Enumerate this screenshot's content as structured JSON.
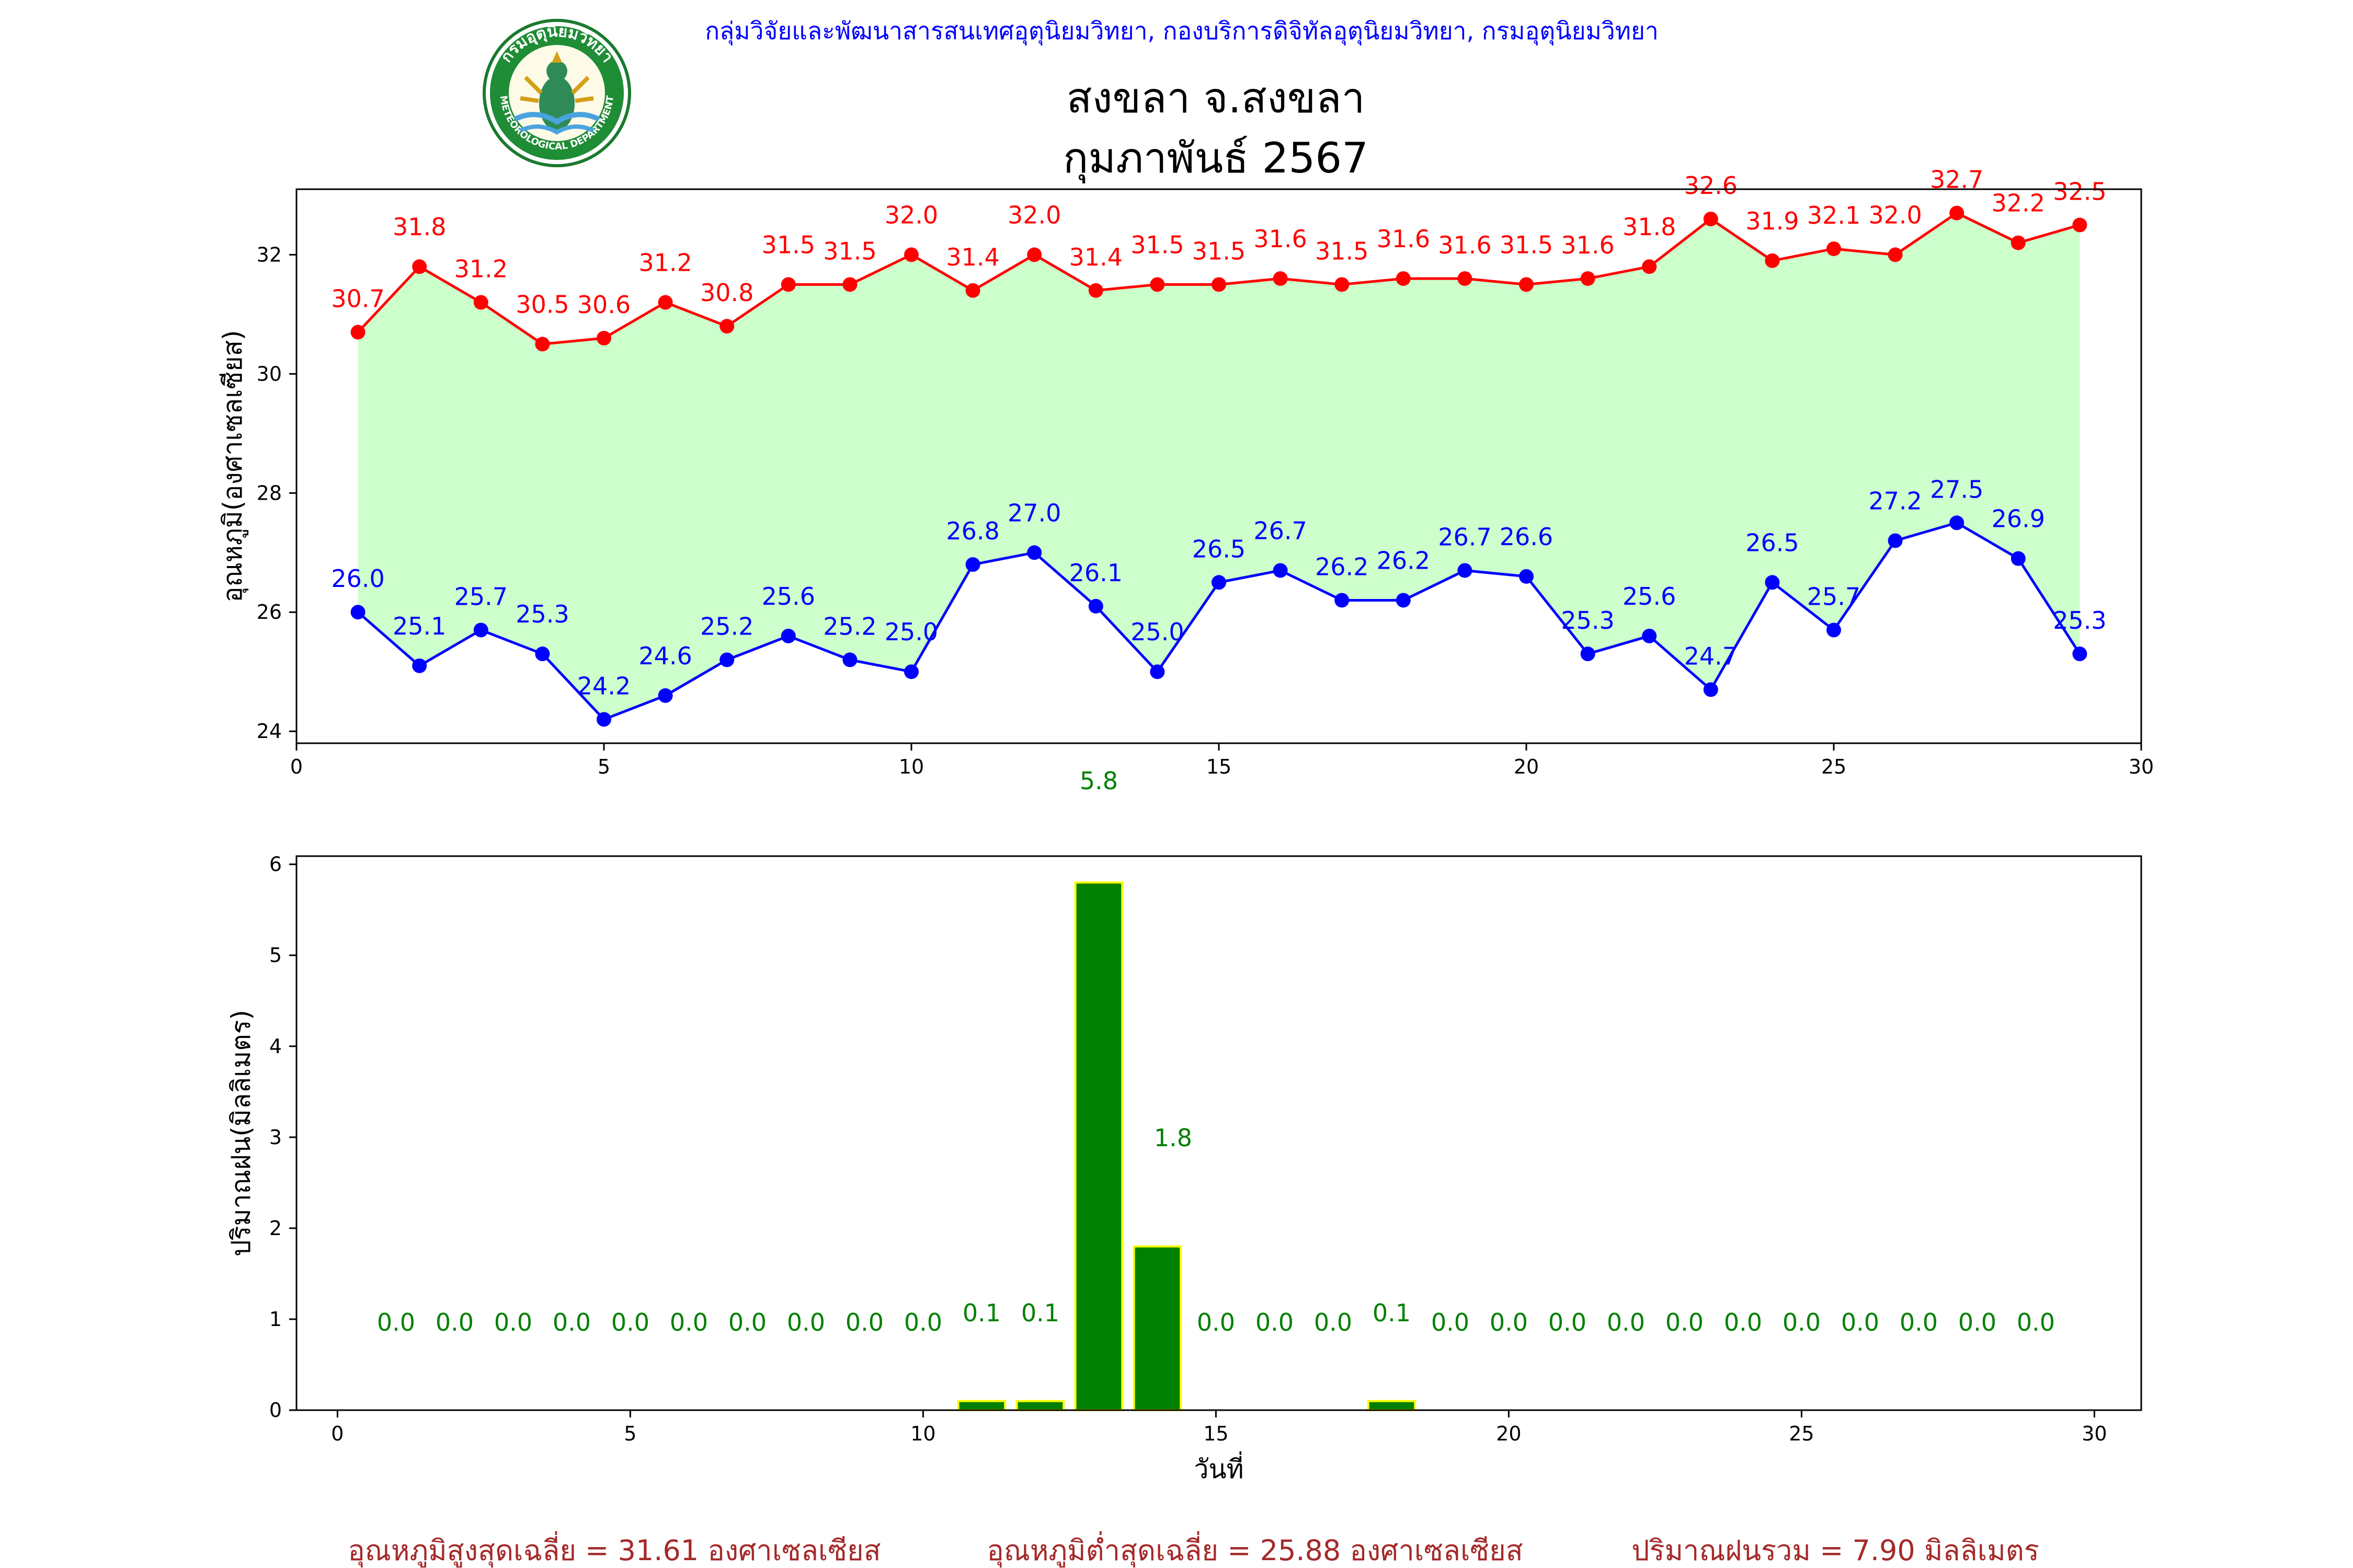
{
  "header": {
    "agency_line": "กลุ่มวิจัยและพัฒนาสารสนเทศอุตุนิยมวิทยา, กองบริการดิจิทัลอุตุนิยมวิทยา, กรมอุตุนิยมวิทยา",
    "station": "สงขลา จ.สงขลา",
    "period": "กุมภาพันธ์ 2567",
    "logo": {
      "icon": "meteorological-department-seal-icon",
      "ring_text": "กรมอุตุนิยมวิทยา",
      "ring_text_en": "METEOROLOGICAL DEPARTMENT"
    }
  },
  "colors": {
    "max_line": "#ff0000",
    "min_line": "#0000ff",
    "band_fill": "#ccffcc",
    "rain_bar": "#008000",
    "rain_edge": "#ffff00",
    "rain_label": "#008000",
    "footer_text": "#a52a2a",
    "header_text": "#0000ff"
  },
  "chart_data": [
    {
      "type": "line",
      "ylabel": "อุณหภูมิ(องศาเซลเซียส)",
      "xlim": [
        0,
        30
      ],
      "ylim": [
        23.8,
        33.1
      ],
      "xticks": [
        0,
        5,
        10,
        15,
        20,
        25,
        30
      ],
      "yticks": [
        24,
        26,
        28,
        30,
        32
      ],
      "x": [
        1,
        2,
        3,
        4,
        5,
        6,
        7,
        8,
        9,
        10,
        11,
        12,
        13,
        14,
        15,
        16,
        17,
        18,
        19,
        20,
        21,
        22,
        23,
        24,
        25,
        26,
        27,
        28,
        29
      ],
      "series": [
        {
          "values": [
            30.7,
            31.8,
            31.2,
            30.5,
            30.6,
            31.2,
            30.8,
            31.5,
            31.5,
            32.0,
            31.4,
            32.0,
            31.4,
            31.5,
            31.5,
            31.6,
            31.5,
            31.6,
            31.6,
            31.5,
            31.6,
            31.8,
            32.6,
            31.9,
            32.1,
            32.0,
            32.7,
            32.2,
            32.5
          ]
        },
        {
          "values": [
            26.0,
            25.1,
            25.7,
            25.3,
            24.2,
            24.6,
            25.2,
            25.6,
            25.2,
            25.0,
            26.8,
            27.0,
            26.1,
            25.0,
            26.5,
            26.7,
            26.2,
            26.2,
            26.7,
            26.6,
            25.3,
            25.6,
            24.7,
            26.5,
            25.7,
            27.2,
            27.5,
            26.9,
            25.3
          ]
        }
      ]
    },
    {
      "type": "bar",
      "ylabel": "ปริมาณฝน(มิลลิเมตร)",
      "xlabel": "วันที่",
      "xlim": [
        -0.7,
        30.8
      ],
      "ylim": [
        0,
        6.09
      ],
      "xticks": [
        0,
        5,
        10,
        15,
        20,
        25,
        30
      ],
      "yticks": [
        0,
        1,
        2,
        3,
        4,
        5,
        6
      ],
      "categories": [
        1,
        2,
        3,
        4,
        5,
        6,
        7,
        8,
        9,
        10,
        11,
        12,
        13,
        14,
        15,
        16,
        17,
        18,
        19,
        20,
        21,
        22,
        23,
        24,
        25,
        26,
        27,
        28,
        29
      ],
      "values": [
        0.0,
        0.0,
        0.0,
        0.0,
        0.0,
        0.0,
        0.0,
        0.0,
        0.0,
        0.0,
        0.1,
        0.1,
        5.8,
        1.8,
        0.0,
        0.0,
        0.0,
        0.1,
        0.0,
        0.0,
        0.0,
        0.0,
        0.0,
        0.0,
        0.0,
        0.0,
        0.0,
        0.0,
        0.0
      ]
    }
  ],
  "footer": {
    "avg_max": "อุณหภูมิสูงสุดเฉลี่ย = 31.61 องศาเซลเซียส",
    "avg_min": "อุณหภูมิต่ำสุดเฉลี่ย = 25.88 องศาเซลเซียส",
    "total_rain": "ปริมาณฝนรวม = 7.90 มิลลิเมตร"
  }
}
